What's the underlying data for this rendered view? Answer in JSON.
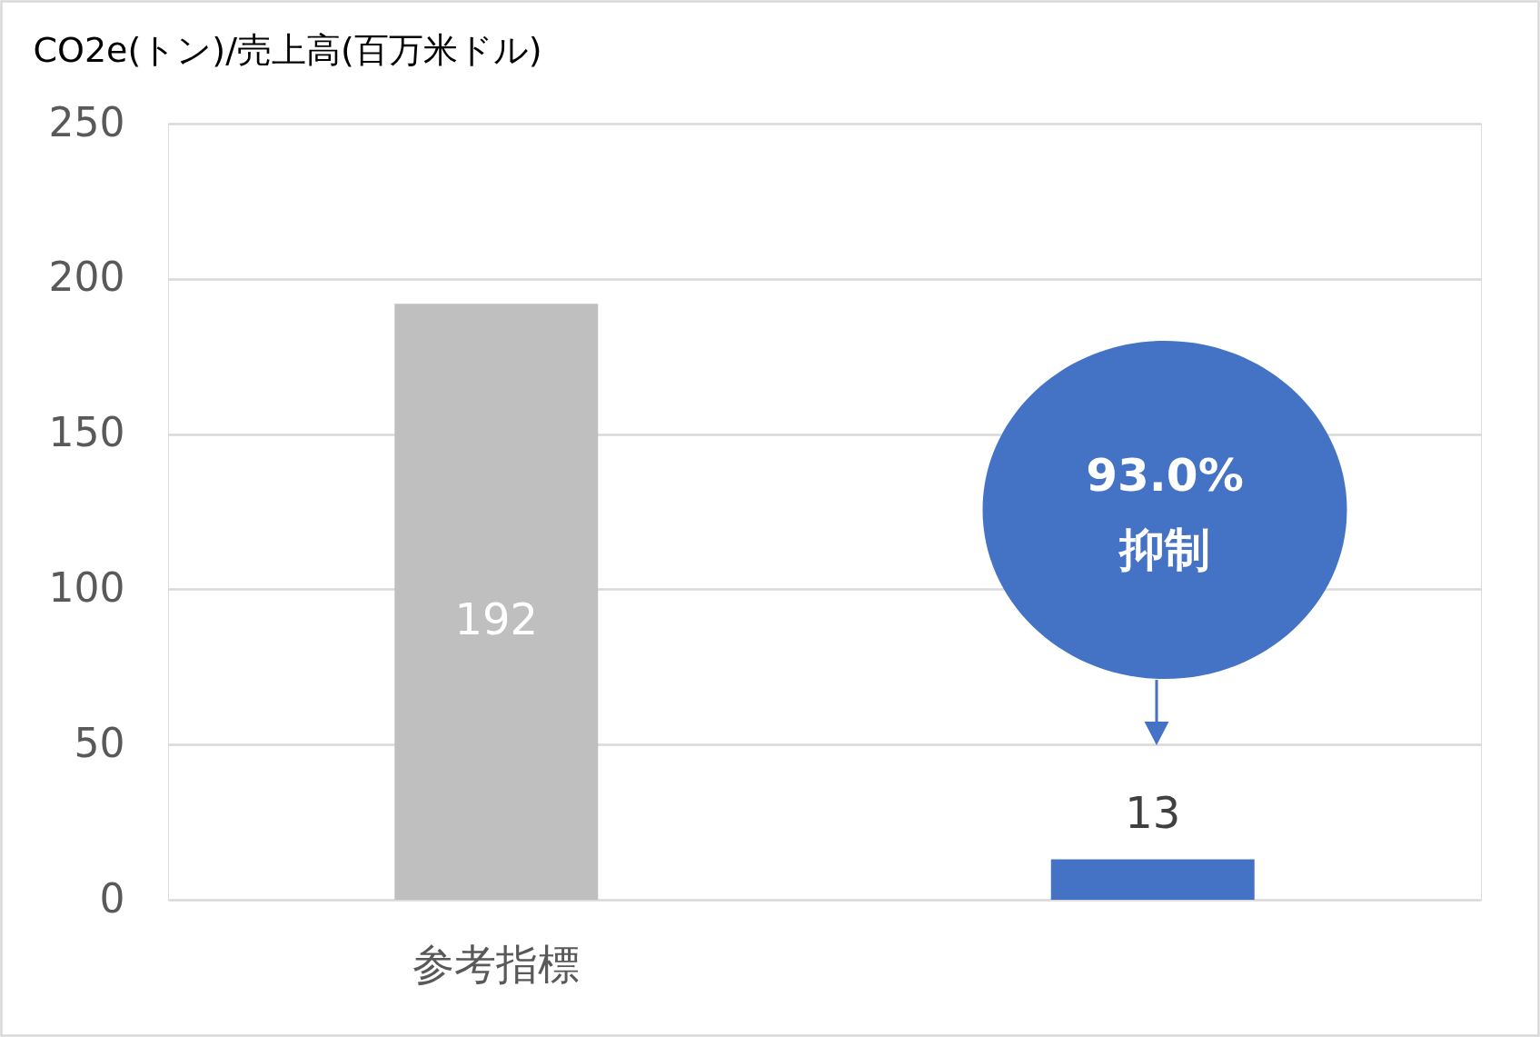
{
  "chart_data": {
    "type": "bar",
    "ylabel": "CO2e(トン)/売上高(百万米ドル)",
    "categories": [
      "参考指標",
      null
    ],
    "values": [
      192,
      13
    ],
    "colors": [
      "#bfbfbf",
      "#4472c4"
    ],
    "ylim": [
      0,
      250
    ],
    "yticks": [
      0,
      50,
      100,
      150,
      200,
      250
    ],
    "grid": "y",
    "legend": false,
    "data_labels": true,
    "annotations": [
      "93.0%\n抑制"
    ]
  }
}
